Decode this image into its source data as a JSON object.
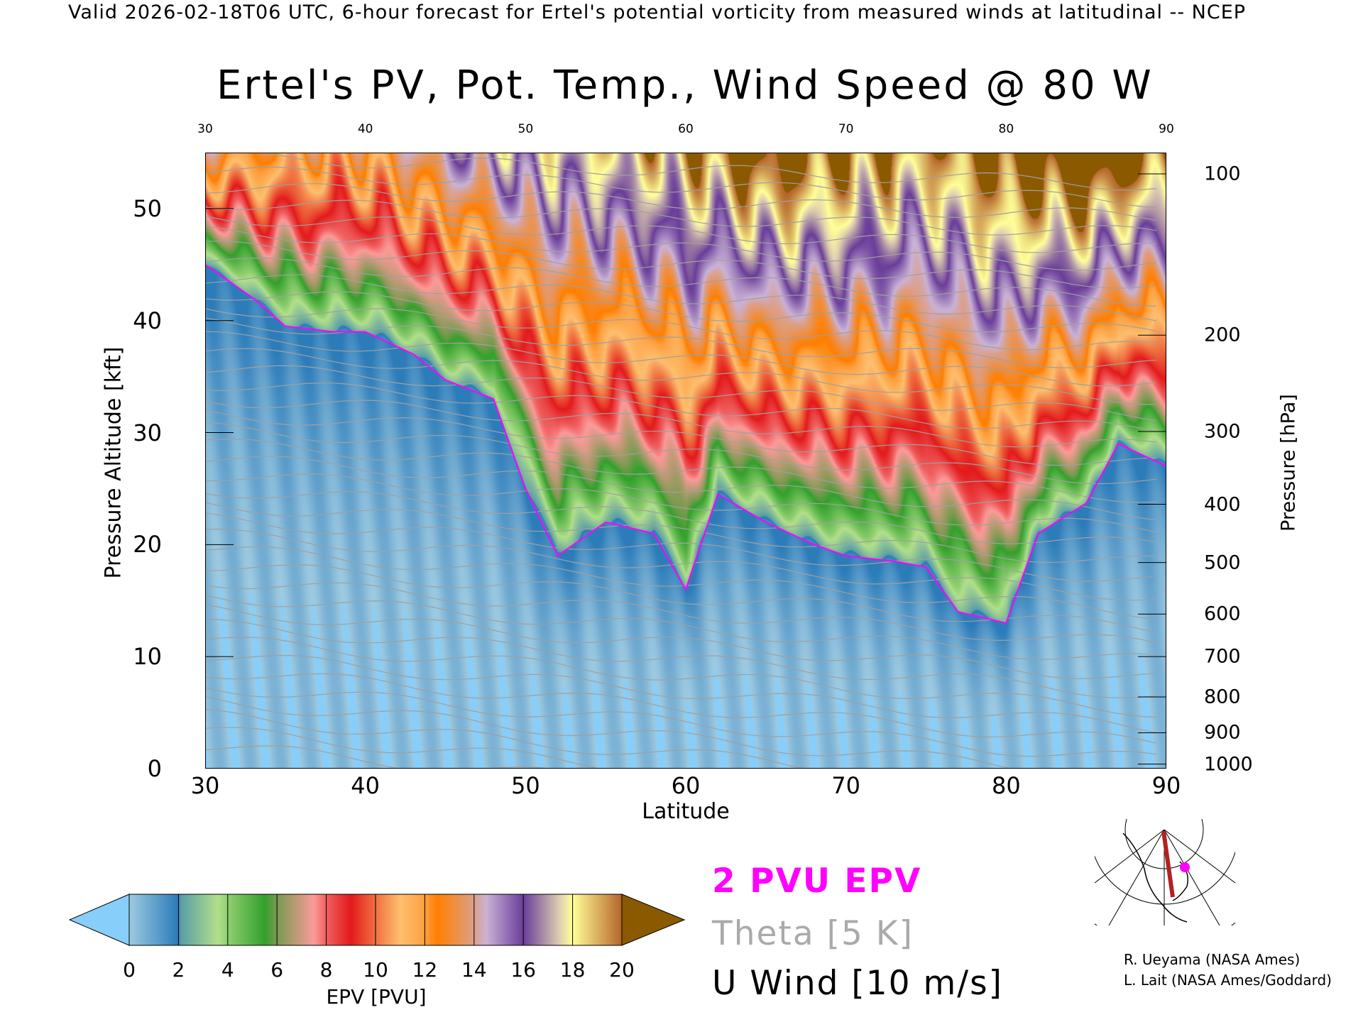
{
  "header": {
    "valid_line": "Valid 2026-02-18T06 UTC, 6-hour forecast for Ertel's potential vorticity from measured winds at latitudinal -- NCEP"
  },
  "chart_data": {
    "type": "heatmap",
    "title": "Ertel's PV, Pot. Temp., Wind Speed @ 80 W",
    "xlabel": "Latitude",
    "ylabel": "Pressure Altitude [kft]",
    "y2label": "Pressure [hPa]",
    "xlim": [
      30,
      90
    ],
    "ylim": [
      0,
      55
    ],
    "x_ticks": [
      "30",
      "40",
      "50",
      "60",
      "70",
      "80",
      "90"
    ],
    "y_ticks": [
      "0",
      "10",
      "20",
      "30",
      "40",
      "50"
    ],
    "pressure_ticks": [
      {
        "label": "100",
        "kft": 53.1
      },
      {
        "label": "200",
        "kft": 38.7
      },
      {
        "label": "300",
        "kft": 30.1
      },
      {
        "label": "400",
        "kft": 23.6
      },
      {
        "label": "500",
        "kft": 18.4
      },
      {
        "label": "600",
        "kft": 13.8
      },
      {
        "label": "700",
        "kft": 10.0
      },
      {
        "label": "800",
        "kft": 6.4
      },
      {
        "label": "900",
        "kft": 3.2
      },
      {
        "label": "1000",
        "kft": 0.4
      }
    ],
    "tropopause_2pvu": {
      "lat": [
        30,
        33,
        35,
        38,
        40,
        43,
        45,
        48,
        50,
        52,
        55,
        58,
        60,
        62,
        65,
        68,
        70,
        73,
        75,
        77,
        80,
        82,
        85,
        87,
        90
      ],
      "kft": [
        45,
        42,
        39.5,
        39,
        39,
        37,
        34.7,
        33,
        25,
        19,
        22,
        21,
        16,
        24.5,
        22,
        20,
        19,
        18.5,
        18,
        14,
        13,
        21,
        23.7,
        29,
        27
      ]
    },
    "top_pv": {
      "lat": [
        30,
        35,
        40,
        45,
        50,
        55,
        60,
        65,
        70,
        75,
        80,
        85,
        90
      ],
      "pvu": [
        13,
        12,
        12,
        15,
        17,
        18,
        19,
        21,
        20,
        19,
        21,
        22,
        20
      ]
    },
    "colorbar": {
      "label": "EPV [PVU]",
      "ticks": [
        "0",
        "2",
        "4",
        "6",
        "8",
        "10",
        "12",
        "14",
        "16",
        "18",
        "20"
      ],
      "under_color": "#87cefa",
      "over_color": "#8b5a00",
      "stops": [
        {
          "v": 0,
          "c": "#9ecae1"
        },
        {
          "v": 2,
          "c": "#2b7bb9"
        },
        {
          "v": 2.1,
          "c": "#5a9fa6"
        },
        {
          "v": 3.6,
          "c": "#b2df8a"
        },
        {
          "v": 4,
          "c": "#8fcf70"
        },
        {
          "v": 5.5,
          "c": "#33a02c"
        },
        {
          "v": 6,
          "c": "#7a9a50"
        },
        {
          "v": 7.5,
          "c": "#fb9a99"
        },
        {
          "v": 8,
          "c": "#f06060"
        },
        {
          "v": 9,
          "c": "#e31a1c"
        },
        {
          "v": 10,
          "c": "#f07040"
        },
        {
          "v": 11,
          "c": "#fdbf6f"
        },
        {
          "v": 12,
          "c": "#fda040"
        },
        {
          "v": 12.5,
          "c": "#ff7f00"
        },
        {
          "v": 14,
          "c": "#dca08a"
        },
        {
          "v": 14.5,
          "c": "#cab2d6"
        },
        {
          "v": 16,
          "c": "#6a3d9a"
        },
        {
          "v": 17.5,
          "c": "#e0d0b0"
        },
        {
          "v": 18,
          "c": "#ffff99"
        },
        {
          "v": 20,
          "c": "#b5652a"
        }
      ]
    },
    "legend": [
      {
        "label": "2 PVU EPV",
        "color": "#ff00ff"
      },
      {
        "label": "Theta [5 K]",
        "color": "#aaaaaa"
      },
      {
        "label": "U Wind [10 m/s]",
        "color": "#000000"
      }
    ]
  },
  "credits": [
    "R. Ueyama (NASA Ames)",
    "L. Lait (NASA Ames/Goddard)"
  ]
}
